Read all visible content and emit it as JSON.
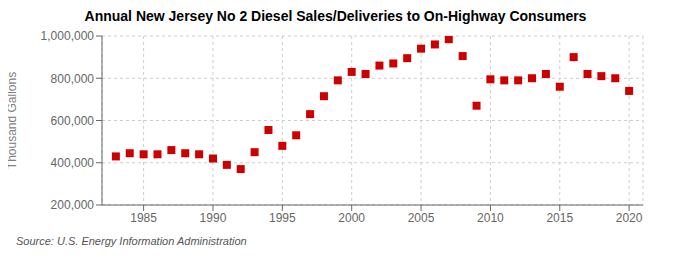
{
  "chart_data": {
    "type": "scatter",
    "title": "Annual New Jersey No 2 Diesel Sales/Deliveries to On-Highway Consumers",
    "ylabel": "Thousand Gallons",
    "annotations": [
      "Source: U.S. Energy Information Administration"
    ],
    "x": [
      1983,
      1984,
      1985,
      1986,
      1987,
      1988,
      1989,
      1990,
      1991,
      1992,
      1993,
      1994,
      1995,
      1996,
      1997,
      1998,
      1999,
      2000,
      2001,
      2002,
      2003,
      2004,
      2005,
      2006,
      2007,
      2008,
      2009,
      2010,
      2011,
      2012,
      2013,
      2014,
      2015,
      2016,
      2017,
      2018,
      2019,
      2020
    ],
    "values": [
      430000,
      445000,
      440000,
      440000,
      460000,
      445000,
      440000,
      420000,
      390000,
      370000,
      450000,
      555000,
      480000,
      530000,
      630000,
      715000,
      790000,
      830000,
      820000,
      860000,
      870000,
      895000,
      940000,
      960000,
      985000,
      905000,
      670000,
      795000,
      790000,
      790000,
      800000,
      820000,
      760000,
      900000,
      820000,
      810000,
      800000,
      740000
    ],
    "color": "#cc0000",
    "marker": "square",
    "xlim": [
      1982,
      2021
    ],
    "xticks": [
      1985,
      1990,
      1995,
      2000,
      2005,
      2010,
      2015,
      2020
    ],
    "ylim": [
      200000,
      1000000
    ],
    "yticks": [
      {
        "value": 200000,
        "label": "200,000"
      },
      {
        "value": 400000,
        "label": "400,000"
      },
      {
        "value": 600000,
        "label": "600,000"
      },
      {
        "value": 800000,
        "label": "800,000"
      },
      {
        "value": 1000000,
        "label": "1,000,000"
      }
    ],
    "grid": true
  }
}
